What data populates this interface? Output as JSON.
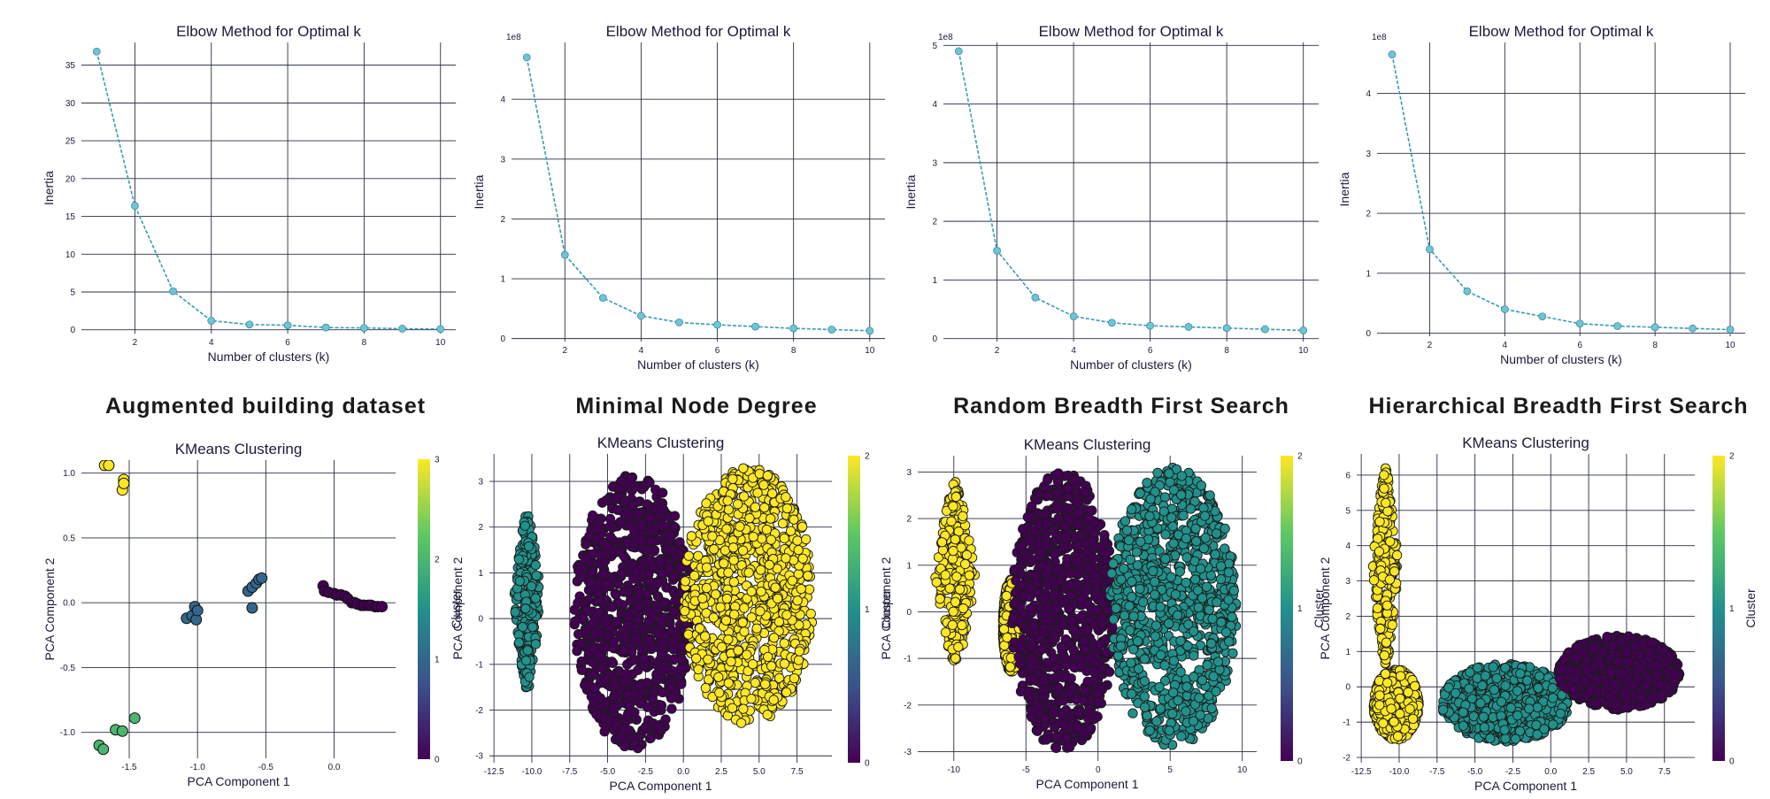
{
  "figure": {
    "dataset_titles": [
      "Augmented building dataset",
      "Minimal Node Degree",
      "Random Breadth First Search",
      "Hierarchical Breadth First Search"
    ]
  },
  "colors": {
    "elbow_line": "#3a9bb0",
    "elbow_marker": "#6fc4d6",
    "grid": "#2a2f45",
    "viridis": [
      "#440154",
      "#31688e",
      "#21918c",
      "#35b779",
      "#fde725"
    ]
  },
  "chart_data": [
    {
      "type": "line",
      "title": "Elbow Method for Optimal k",
      "xlabel": "Number of clusters (k)",
      "ylabel": "Inertia",
      "offset_label": "",
      "x": [
        1,
        2,
        3,
        4,
        5,
        6,
        7,
        8,
        9,
        10
      ],
      "y": [
        36.8,
        16.4,
        5.1,
        1.2,
        0.7,
        0.6,
        0.3,
        0.25,
        0.15,
        0.1
      ],
      "xlim": [
        0.6,
        10.4
      ],
      "ylim": [
        -0.5,
        38
      ],
      "xticks": [
        2,
        4,
        6,
        8,
        10
      ],
      "yticks": [
        0,
        5,
        10,
        15,
        20,
        25,
        30,
        35
      ]
    },
    {
      "type": "line",
      "title": "Elbow Method for Optimal k",
      "xlabel": "Number of clusters (k)",
      "ylabel": "Inertia",
      "offset_label": "1e8",
      "x": [
        1,
        2,
        3,
        4,
        5,
        6,
        7,
        8,
        9,
        10
      ],
      "y": [
        4.7,
        1.4,
        0.68,
        0.38,
        0.27,
        0.23,
        0.2,
        0.17,
        0.15,
        0.13
      ],
      "xlim": [
        0.6,
        10.4
      ],
      "ylim": [
        -0.05,
        4.95
      ],
      "xticks": [
        2,
        4,
        6,
        8,
        10
      ],
      "yticks": [
        0,
        1,
        2,
        3,
        4
      ]
    },
    {
      "type": "line",
      "title": "Elbow Method for Optimal k",
      "xlabel": "Number of clusters (k)",
      "ylabel": "Inertia",
      "offset_label": "1e8",
      "x": [
        1,
        2,
        3,
        4,
        5,
        6,
        7,
        8,
        9,
        10
      ],
      "y": [
        4.9,
        1.5,
        0.7,
        0.38,
        0.27,
        0.22,
        0.2,
        0.18,
        0.16,
        0.14
      ],
      "xlim": [
        0.6,
        10.4
      ],
      "ylim": [
        -0.05,
        5.05
      ],
      "xticks": [
        2,
        4,
        6,
        8,
        10
      ],
      "yticks": [
        0,
        1,
        2,
        3,
        4,
        5
      ]
    },
    {
      "type": "line",
      "title": "Elbow Method for Optimal k",
      "xlabel": "Number of clusters (k)",
      "ylabel": "Inertia",
      "offset_label": "1e8",
      "x": [
        1,
        2,
        3,
        4,
        5,
        6,
        7,
        8,
        9,
        10
      ],
      "y": [
        4.65,
        1.4,
        0.7,
        0.4,
        0.28,
        0.16,
        0.12,
        0.1,
        0.08,
        0.06
      ],
      "xlim": [
        0.6,
        10.4
      ],
      "ylim": [
        -0.05,
        4.85
      ],
      "xticks": [
        2,
        4,
        6,
        8,
        10
      ],
      "yticks": [
        0,
        1,
        2,
        3,
        4
      ]
    },
    {
      "type": "scatter",
      "title": "KMeans Clustering",
      "xlabel": "PCA Component 1",
      "ylabel": "PCA Component 2",
      "colorbar_label": "Cluster",
      "xlim": [
        -1.85,
        0.45
      ],
      "ylim": [
        -1.2,
        1.1
      ],
      "xticks": [
        -1.5,
        -1.0,
        -0.5,
        0.0
      ],
      "yticks": [
        -1.0,
        -0.5,
        0.0,
        0.5,
        1.0
      ],
      "colorbar": {
        "min": 0,
        "max": 3,
        "ticks": [
          0,
          1,
          2,
          3
        ]
      },
      "points": [
        [
          -1.68,
          1.06,
          3
        ],
        [
          -1.65,
          1.06,
          3
        ],
        [
          -1.54,
          0.95,
          3
        ],
        [
          -1.55,
          0.87,
          3
        ],
        [
          -1.54,
          0.92,
          3
        ],
        [
          -1.72,
          -1.1,
          2
        ],
        [
          -1.69,
          -1.13,
          2
        ],
        [
          -1.6,
          -0.98,
          2
        ],
        [
          -1.55,
          -0.99,
          2
        ],
        [
          -1.46,
          -0.89,
          2
        ],
        [
          -1.08,
          -0.12,
          1
        ],
        [
          -1.04,
          -0.1,
          1
        ],
        [
          -1.01,
          -0.13,
          1
        ],
        [
          -1.02,
          -0.03,
          1
        ],
        [
          -1.0,
          -0.06,
          1
        ],
        [
          -0.63,
          0.09,
          1
        ],
        [
          -0.6,
          0.12,
          1
        ],
        [
          -0.57,
          0.15,
          1
        ],
        [
          -0.55,
          0.18,
          1
        ],
        [
          -0.53,
          0.19,
          1
        ],
        [
          -0.6,
          -0.04,
          1
        ],
        [
          -0.08,
          0.13,
          0
        ],
        [
          -0.07,
          0.09,
          0
        ],
        [
          -0.04,
          0.08,
          0
        ],
        [
          0.0,
          0.07,
          0
        ],
        [
          0.02,
          0.06,
          0
        ],
        [
          0.05,
          0.06,
          0
        ],
        [
          0.08,
          0.05,
          0
        ],
        [
          0.1,
          0.03,
          0
        ],
        [
          0.13,
          0.0,
          0
        ],
        [
          0.15,
          0.0,
          0
        ],
        [
          0.17,
          -0.01,
          0
        ],
        [
          0.2,
          -0.02,
          0
        ],
        [
          0.22,
          -0.02,
          0
        ],
        [
          0.25,
          -0.02,
          0
        ],
        [
          0.27,
          -0.02,
          0
        ],
        [
          0.3,
          -0.03,
          0
        ],
        [
          0.32,
          -0.03,
          0
        ],
        [
          0.35,
          -0.03,
          0
        ]
      ]
    },
    {
      "type": "scatter",
      "title": "KMeans Clustering",
      "xlabel": "PCA Component 1",
      "ylabel": "PCA Component 2",
      "colorbar_label": "Cluster",
      "xlim": [
        -12.8,
        9.8
      ],
      "ylim": [
        -3.15,
        3.6
      ],
      "xticks": [
        -12.5,
        -10.0,
        -7.5,
        -5.0,
        -2.5,
        0.0,
        2.5,
        5.0,
        7.5
      ],
      "yticks": [
        -3,
        -2,
        -1,
        0,
        1,
        2,
        3
      ],
      "colorbar": {
        "min": 0,
        "max": 2,
        "ticks": [
          0,
          1,
          2
        ]
      },
      "clusters": [
        {
          "cluster": 1,
          "shape": "spindle",
          "cx": -10.3,
          "cy": 0.4,
          "rx": 0.9,
          "ry": 1.95
        },
        {
          "cluster": 0,
          "shape": "blob",
          "cx": -3.3,
          "cy": 0.15,
          "rx": 3.9,
          "ry": 3.0
        },
        {
          "cluster": 2,
          "shape": "blob",
          "cx": 4.3,
          "cy": 0.5,
          "rx": 4.3,
          "ry": 2.8
        }
      ]
    },
    {
      "type": "scatter",
      "title": "KMeans Clustering",
      "xlabel": "PCA Component 1",
      "ylabel": "PCA Component 2",
      "colorbar_label": "Cluster",
      "xlim": [
        -12.5,
        11.0
      ],
      "ylim": [
        -3.2,
        3.35
      ],
      "xticks": [
        -10,
        -5,
        0,
        5,
        10
      ],
      "yticks": [
        -3,
        -2,
        -1,
        0,
        1,
        2,
        3
      ],
      "colorbar": {
        "min": 0,
        "max": 2,
        "ticks": [
          0,
          1,
          2
        ]
      },
      "clusters": [
        {
          "cluster": 2,
          "shape": "spindle",
          "cx": -9.9,
          "cy": 0.8,
          "rx": 1.4,
          "ry": 2.0
        },
        {
          "cluster": 2,
          "shape": "blob",
          "cx": -6.0,
          "cy": -0.3,
          "rx": 0.6,
          "ry": 1.0
        },
        {
          "cluster": 0,
          "shape": "blob",
          "cx": -2.4,
          "cy": 0.0,
          "rx": 3.6,
          "ry": 3.0
        },
        {
          "cluster": 1,
          "shape": "blob",
          "cx": 5.2,
          "cy": 0.1,
          "rx": 4.4,
          "ry": 3.0
        }
      ]
    },
    {
      "type": "scatter",
      "title": "KMeans Clustering",
      "xlabel": "PCA Component 1",
      "ylabel": "PCA Component 2",
      "colorbar_label": "Cluster",
      "xlim": [
        -12.8,
        9.5
      ],
      "ylim": [
        -2.15,
        6.6
      ],
      "xticks": [
        -12.5,
        -10.0,
        -7.5,
        -5.0,
        -2.5,
        0.0,
        2.5,
        5.0,
        7.5
      ],
      "yticks": [
        -2,
        -1,
        0,
        1,
        2,
        3,
        4,
        5,
        6
      ],
      "colorbar": {
        "min": 0,
        "max": 2,
        "ticks": [
          0,
          1,
          2
        ]
      },
      "clusters": [
        {
          "cluster": 2,
          "shape": "spindle",
          "cx": -10.9,
          "cy": 3.4,
          "rx": 0.85,
          "ry": 2.8
        },
        {
          "cluster": 2,
          "shape": "blob",
          "cx": -10.2,
          "cy": -0.5,
          "rx": 1.5,
          "ry": 1.0
        },
        {
          "cluster": 1,
          "shape": "blob",
          "cx": -3.0,
          "cy": -0.45,
          "rx": 4.2,
          "ry": 1.1
        },
        {
          "cluster": 0,
          "shape": "blob",
          "cx": 4.5,
          "cy": 0.4,
          "rx": 4.0,
          "ry": 1.05
        }
      ]
    }
  ]
}
